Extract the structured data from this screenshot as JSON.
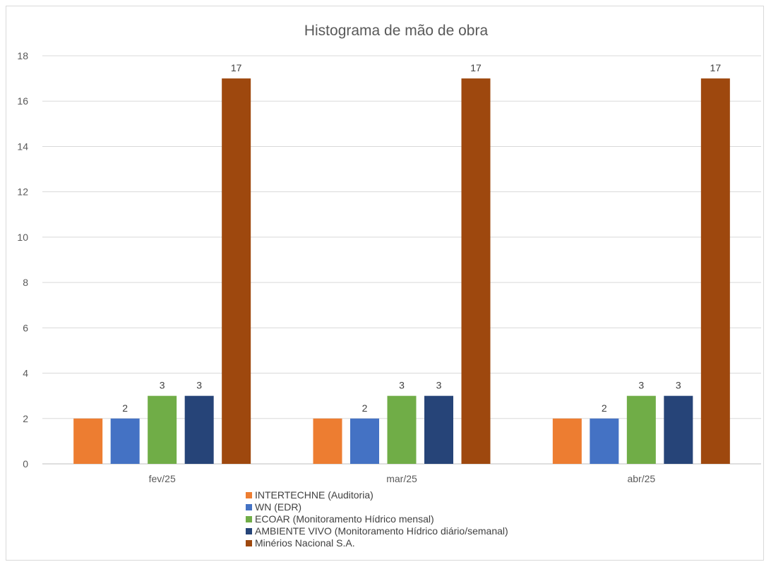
{
  "chart_data": {
    "type": "bar",
    "title": "Histograma de mão de obra",
    "xlabel": "",
    "ylabel": "",
    "categories": [
      "fev/25",
      "mar/25",
      "abr/25"
    ],
    "ylim": [
      0,
      18
    ],
    "yticks": [
      0,
      2,
      4,
      6,
      8,
      10,
      12,
      14,
      16,
      18
    ],
    "grid": true,
    "legend_position": "bottom",
    "series": [
      {
        "name": "INTERTECHNE (Auditoria)",
        "color": "#ED7D31",
        "values": [
          2,
          2,
          2
        ],
        "show_labels": false
      },
      {
        "name": "WN (EDR)",
        "color": "#4472C4",
        "values": [
          2,
          2,
          2
        ],
        "show_labels": true
      },
      {
        "name": "ECOAR (Monitoramento Hídrico mensal)",
        "color": "#70AD47",
        "values": [
          3,
          3,
          3
        ],
        "show_labels": true
      },
      {
        "name": "AMBIENTE VIVO (Monitoramento Hídrico diário/semanal)",
        "color": "#264478",
        "values": [
          3,
          3,
          3
        ],
        "show_labels": true
      },
      {
        "name": "Minérios Nacional S.A.",
        "color": "#9E480E",
        "values": [
          17,
          17,
          17
        ],
        "show_labels": true
      }
    ]
  }
}
